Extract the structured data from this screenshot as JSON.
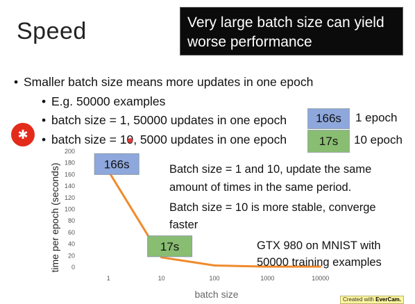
{
  "slide": {
    "title": "Speed"
  },
  "callout": {
    "line1": "Very large batch size can yield",
    "line2": "worse performance"
  },
  "bullets": {
    "main": "Smaller batch size means more updates in one epoch",
    "sub": [
      "E.g. 50000 examples",
      "batch size = 1, 50000 updates in one epoch",
      "batch size = 10, 5000 updates in one epoch"
    ]
  },
  "epoch_tags": [
    {
      "time": "166s",
      "label": "1 epoch",
      "color": "#8ea7dc"
    },
    {
      "time": "17s",
      "label": "10 epoch",
      "color": "#89bd72"
    }
  ],
  "notes": [
    "Batch size = 1 and 10, update the same",
    "amount of times in the same period.",
    "Batch size = 10 is more stable, converge",
    "faster",
    "GTX 980 on MNIST with",
    "50000 training examples"
  ],
  "watermark": {
    "prefix": "Created with",
    "brand": "EverCam."
  },
  "chart_data": {
    "type": "line",
    "x": [
      "1",
      "10",
      "100",
      "1000",
      "10000"
    ],
    "y": [
      166,
      17,
      3,
      1,
      1
    ],
    "xlabel": "batch size",
    "ylabel": "time per epoch (seconds)",
    "ylim": [
      0,
      200
    ],
    "yticks": [
      0,
      20,
      40,
      60,
      80,
      100,
      120,
      140,
      160,
      180,
      200
    ],
    "line_color": "#f08a2c",
    "point_labels": [
      {
        "index": 0,
        "text": "166s",
        "color": "#8ea7dc"
      },
      {
        "index": 1,
        "text": "17s",
        "color": "#89bd72"
      }
    ],
    "grid": false,
    "legend": "none"
  }
}
